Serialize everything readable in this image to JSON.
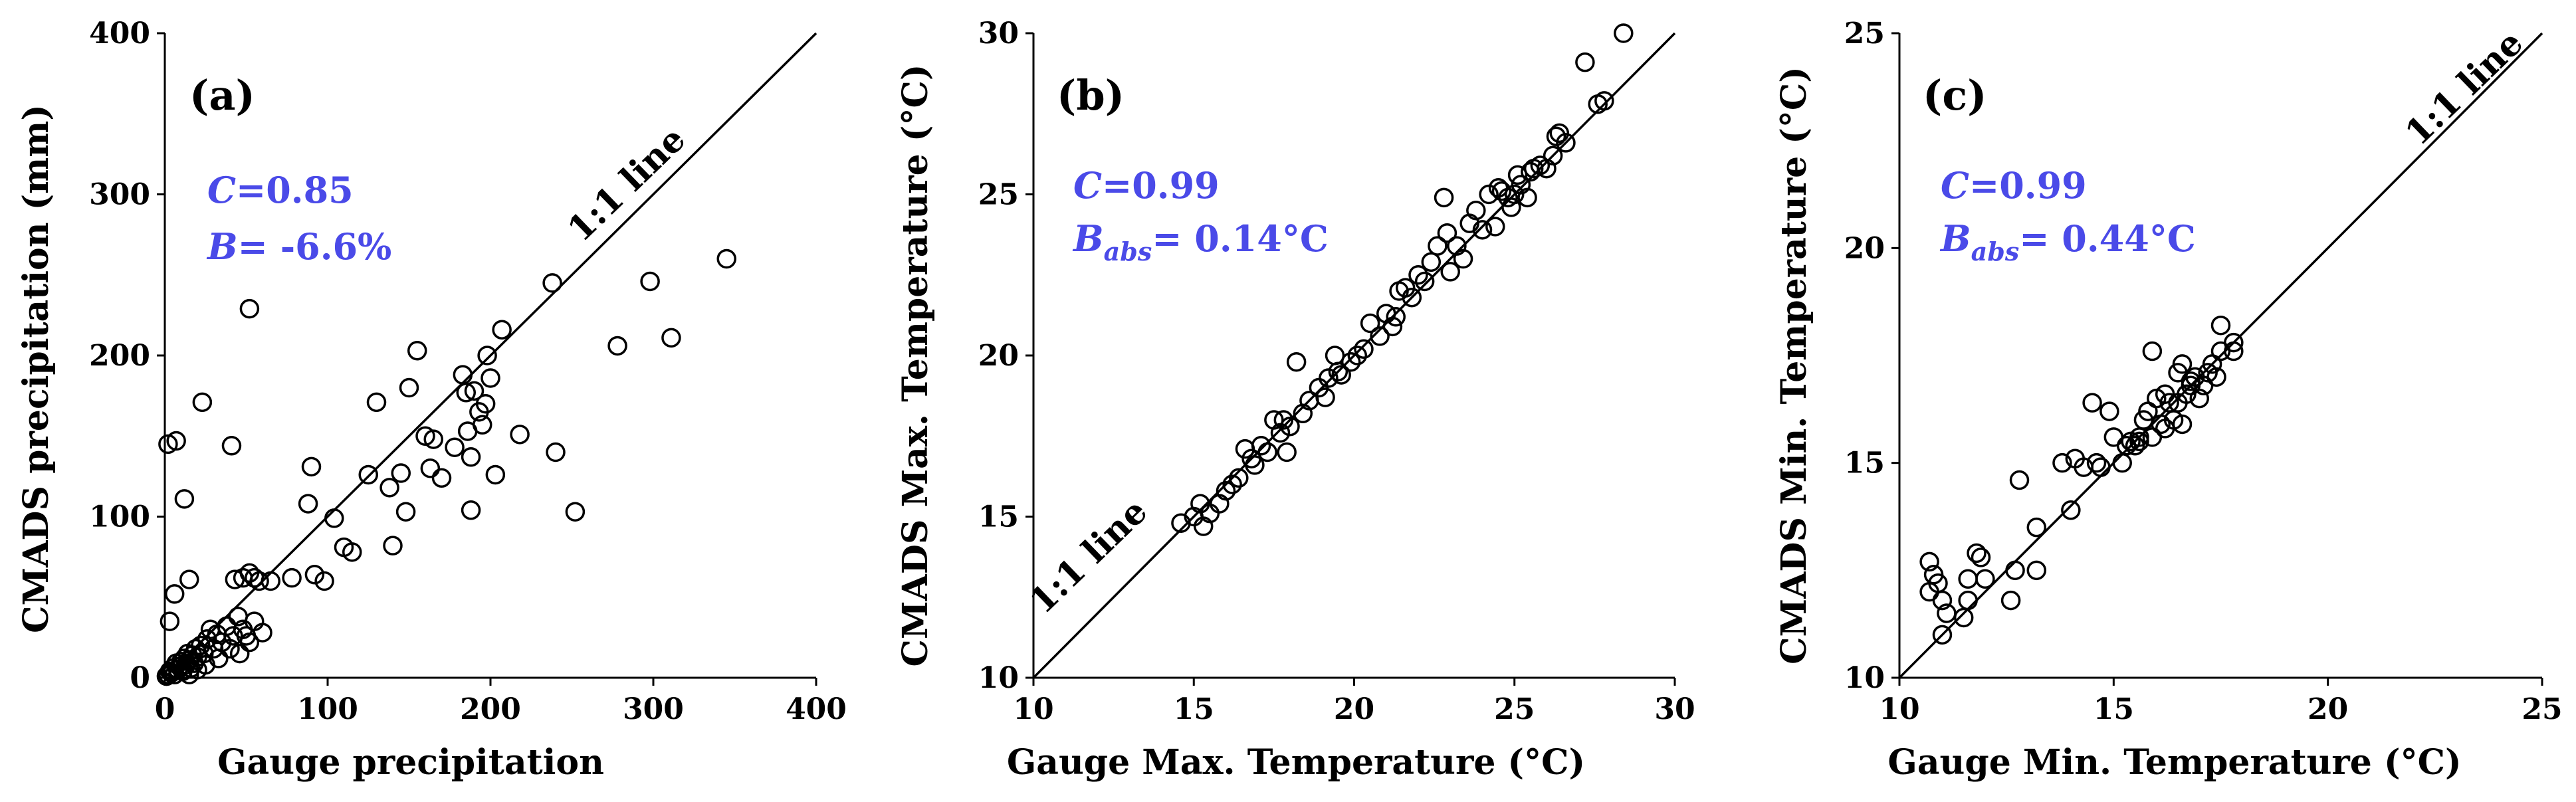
{
  "chart_data": [
    {
      "type": "scatter",
      "panel_label": "(a)",
      "xlabel": "Gauge precipitation",
      "ylabel": "CMADS precipitation (mm)",
      "xlim": [
        0,
        400
      ],
      "ylim": [
        0,
        400
      ],
      "xticks": [
        "0",
        "100",
        "200",
        "300",
        "400"
      ],
      "yticks": [
        "0",
        "100",
        "200",
        "300",
        "400"
      ],
      "reference_line_label": "1:1 line",
      "stats": {
        "c_sym": "C",
        "c_val": "=0.85",
        "b_sym": "B",
        "b_sub": "",
        "b_val": "= -6.6%"
      },
      "points": [
        [
          1,
          1
        ],
        [
          2,
          2
        ],
        [
          3,
          4
        ],
        [
          4,
          3
        ],
        [
          5,
          6
        ],
        [
          6,
          2
        ],
        [
          7,
          9
        ],
        [
          8,
          5
        ],
        [
          9,
          7
        ],
        [
          10,
          10
        ],
        [
          11,
          4
        ],
        [
          12,
          12
        ],
        [
          13,
          8
        ],
        [
          14,
          15
        ],
        [
          15,
          11
        ],
        [
          16,
          6
        ],
        [
          17,
          14
        ],
        [
          18,
          9
        ],
        [
          19,
          18
        ],
        [
          20,
          13
        ],
        [
          22,
          20
        ],
        [
          24,
          15
        ],
        [
          26,
          24
        ],
        [
          28,
          30
        ],
        [
          30,
          18
        ],
        [
          32,
          27
        ],
        [
          35,
          22
        ],
        [
          38,
          32
        ],
        [
          42,
          26
        ],
        [
          45,
          38
        ],
        [
          48,
          30
        ],
        [
          52,
          22
        ],
        [
          55,
          35
        ],
        [
          60,
          28
        ],
        [
          40,
          18
        ],
        [
          46,
          15
        ],
        [
          50,
          26
        ],
        [
          20,
          5
        ],
        [
          15,
          2
        ],
        [
          25,
          8
        ],
        [
          33,
          12
        ],
        [
          3,
          35
        ],
        [
          2,
          145
        ],
        [
          7,
          147
        ],
        [
          12,
          111
        ],
        [
          15,
          61
        ],
        [
          6,
          52
        ],
        [
          23,
          171
        ],
        [
          41,
          144
        ],
        [
          43,
          61
        ],
        [
          48,
          62
        ],
        [
          52,
          65
        ],
        [
          55,
          62
        ],
        [
          58,
          60
        ],
        [
          65,
          60
        ],
        [
          78,
          62
        ],
        [
          90,
          131
        ],
        [
          88,
          108
        ],
        [
          92,
          64
        ],
        [
          98,
          60
        ],
        [
          104,
          99
        ],
        [
          110,
          81
        ],
        [
          115,
          78
        ],
        [
          125,
          126
        ],
        [
          130,
          171
        ],
        [
          138,
          118
        ],
        [
          140,
          82
        ],
        [
          145,
          127
        ],
        [
          148,
          103
        ],
        [
          150,
          180
        ],
        [
          155,
          203
        ],
        [
          160,
          150
        ],
        [
          163,
          130
        ],
        [
          165,
          148
        ],
        [
          170,
          124
        ],
        [
          178,
          143
        ],
        [
          183,
          188
        ],
        [
          185,
          177
        ],
        [
          186,
          153
        ],
        [
          188,
          137
        ],
        [
          190,
          178
        ],
        [
          193,
          165
        ],
        [
          195,
          157
        ],
        [
          197,
          170
        ],
        [
          198,
          200
        ],
        [
          200,
          186
        ],
        [
          203,
          126
        ],
        [
          207,
          216
        ],
        [
          218,
          151
        ],
        [
          238,
          245
        ],
        [
          240,
          140
        ],
        [
          252,
          103
        ],
        [
          278,
          206
        ],
        [
          298,
          246
        ],
        [
          311,
          211
        ],
        [
          345,
          260
        ],
        [
          52,
          229
        ],
        [
          188,
          104
        ]
      ]
    },
    {
      "type": "scatter",
      "panel_label": "(b)",
      "xlabel": "Gauge Max. Temperature (°C)",
      "ylabel": "CMADS Max. Temperature (°C)",
      "xlim": [
        10,
        30
      ],
      "ylim": [
        10,
        30
      ],
      "xticks": [
        "10",
        "15",
        "20",
        "25",
        "30"
      ],
      "yticks": [
        "10",
        "15",
        "20",
        "25",
        "30"
      ],
      "reference_line_label": "1:1 line",
      "stats": {
        "c_sym": "C",
        "c_val": "=0.99",
        "b_sym": "B",
        "b_sub": "abs",
        "b_val": "= 0.14°C"
      },
      "points": [
        [
          14.6,
          14.8
        ],
        [
          15.0,
          15.0
        ],
        [
          15.2,
          15.4
        ],
        [
          15.3,
          14.7
        ],
        [
          15.5,
          15.1
        ],
        [
          15.8,
          15.4
        ],
        [
          16.0,
          15.8
        ],
        [
          16.2,
          16.0
        ],
        [
          16.4,
          16.2
        ],
        [
          16.6,
          17.1
        ],
        [
          16.9,
          16.6
        ],
        [
          17.1,
          17.2
        ],
        [
          17.3,
          17.0
        ],
        [
          17.5,
          18.0
        ],
        [
          17.7,
          17.6
        ],
        [
          17.9,
          17.0
        ],
        [
          18.0,
          17.8
        ],
        [
          18.2,
          19.8
        ],
        [
          18.4,
          18.2
        ],
        [
          18.6,
          18.6
        ],
        [
          18.9,
          19.0
        ],
        [
          19.1,
          18.7
        ],
        [
          19.2,
          19.3
        ],
        [
          19.4,
          20.0
        ],
        [
          19.6,
          19.4
        ],
        [
          19.9,
          19.8
        ],
        [
          20.1,
          20.0
        ],
        [
          20.3,
          20.2
        ],
        [
          20.5,
          21.0
        ],
        [
          20.8,
          20.6
        ],
        [
          21.0,
          21.3
        ],
        [
          21.2,
          20.9
        ],
        [
          21.4,
          22.0
        ],
        [
          21.6,
          22.1
        ],
        [
          21.8,
          21.8
        ],
        [
          22.0,
          22.5
        ],
        [
          22.2,
          22.3
        ],
        [
          22.4,
          22.9
        ],
        [
          22.6,
          23.4
        ],
        [
          22.8,
          24.9
        ],
        [
          23.0,
          22.6
        ],
        [
          23.2,
          23.4
        ],
        [
          23.4,
          23.0
        ],
        [
          23.6,
          24.1
        ],
        [
          23.8,
          24.5
        ],
        [
          24.0,
          23.9
        ],
        [
          24.2,
          25.0
        ],
        [
          24.4,
          24.0
        ],
        [
          24.5,
          25.2
        ],
        [
          24.6,
          25.1
        ],
        [
          24.8,
          24.9
        ],
        [
          25.0,
          25.0
        ],
        [
          25.1,
          25.6
        ],
        [
          25.2,
          25.3
        ],
        [
          25.4,
          24.9
        ],
        [
          25.6,
          25.8
        ],
        [
          25.8,
          25.9
        ],
        [
          26.0,
          25.8
        ],
        [
          26.2,
          26.2
        ],
        [
          26.4,
          26.9
        ],
        [
          26.6,
          26.6
        ],
        [
          27.2,
          29.1
        ],
        [
          27.6,
          27.8
        ],
        [
          27.8,
          27.9
        ],
        [
          28.4,
          30.0
        ],
        [
          26.3,
          26.8
        ],
        [
          25.5,
          25.7
        ],
        [
          24.9,
          24.6
        ],
        [
          22.9,
          23.8
        ],
        [
          21.3,
          21.2
        ],
        [
          19.5,
          19.5
        ],
        [
          17.8,
          18.0
        ],
        [
          16.8,
          16.8
        ]
      ]
    },
    {
      "type": "scatter",
      "panel_label": "(c)",
      "xlabel": "Gauge Min. Temperature (°C)",
      "ylabel": "CMADS Min. Temperature (°C)",
      "xlim": [
        10,
        25
      ],
      "ylim": [
        10,
        25
      ],
      "xticks": [
        "10",
        "15",
        "20",
        "25"
      ],
      "yticks": [
        "10",
        "15",
        "20",
        "25"
      ],
      "reference_line_label": "1:1 line",
      "stats": {
        "c_sym": "C",
        "c_val": "=0.99",
        "b_sym": "B",
        "b_sub": "abs",
        "b_val": "= 0.44°C"
      },
      "points": [
        [
          10.7,
          12.7
        ],
        [
          10.8,
          12.4
        ],
        [
          10.7,
          12.0
        ],
        [
          10.9,
          12.2
        ],
        [
          11.0,
          11.8
        ],
        [
          11.1,
          11.5
        ],
        [
          11.0,
          11.0
        ],
        [
          11.5,
          11.4
        ],
        [
          11.6,
          11.8
        ],
        [
          11.6,
          12.3
        ],
        [
          11.8,
          12.9
        ],
        [
          12.0,
          12.3
        ],
        [
          11.9,
          12.8
        ],
        [
          12.6,
          11.8
        ],
        [
          12.7,
          12.5
        ],
        [
          12.8,
          14.6
        ],
        [
          13.2,
          12.5
        ],
        [
          13.2,
          13.5
        ],
        [
          13.8,
          15.0
        ],
        [
          14.0,
          13.9
        ],
        [
          14.1,
          15.1
        ],
        [
          14.3,
          14.9
        ],
        [
          14.5,
          16.4
        ],
        [
          14.6,
          15.0
        ],
        [
          14.7,
          14.9
        ],
        [
          14.9,
          16.2
        ],
        [
          15.0,
          15.6
        ],
        [
          15.2,
          15.0
        ],
        [
          15.3,
          15.4
        ],
        [
          15.4,
          15.5
        ],
        [
          15.5,
          15.4
        ],
        [
          15.6,
          15.6
        ],
        [
          15.7,
          16.0
        ],
        [
          15.8,
          16.2
        ],
        [
          15.9,
          15.6
        ],
        [
          15.9,
          17.6
        ],
        [
          16.0,
          16.5
        ],
        [
          16.1,
          15.9
        ],
        [
          16.2,
          16.6
        ],
        [
          16.3,
          16.4
        ],
        [
          16.4,
          16.0
        ],
        [
          16.5,
          16.4
        ],
        [
          16.5,
          17.1
        ],
        [
          16.6,
          17.3
        ],
        [
          16.6,
          15.9
        ],
        [
          16.7,
          16.6
        ],
        [
          16.8,
          16.9
        ],
        [
          16.9,
          17.0
        ],
        [
          17.0,
          16.5
        ],
        [
          17.1,
          16.8
        ],
        [
          17.2,
          17.1
        ],
        [
          17.3,
          17.3
        ],
        [
          17.4,
          17.0
        ],
        [
          17.5,
          17.6
        ],
        [
          17.5,
          18.2
        ],
        [
          17.8,
          17.6
        ],
        [
          17.8,
          17.8
        ],
        [
          16.2,
          15.8
        ],
        [
          15.6,
          15.5
        ],
        [
          16.8,
          16.8
        ]
      ]
    }
  ]
}
